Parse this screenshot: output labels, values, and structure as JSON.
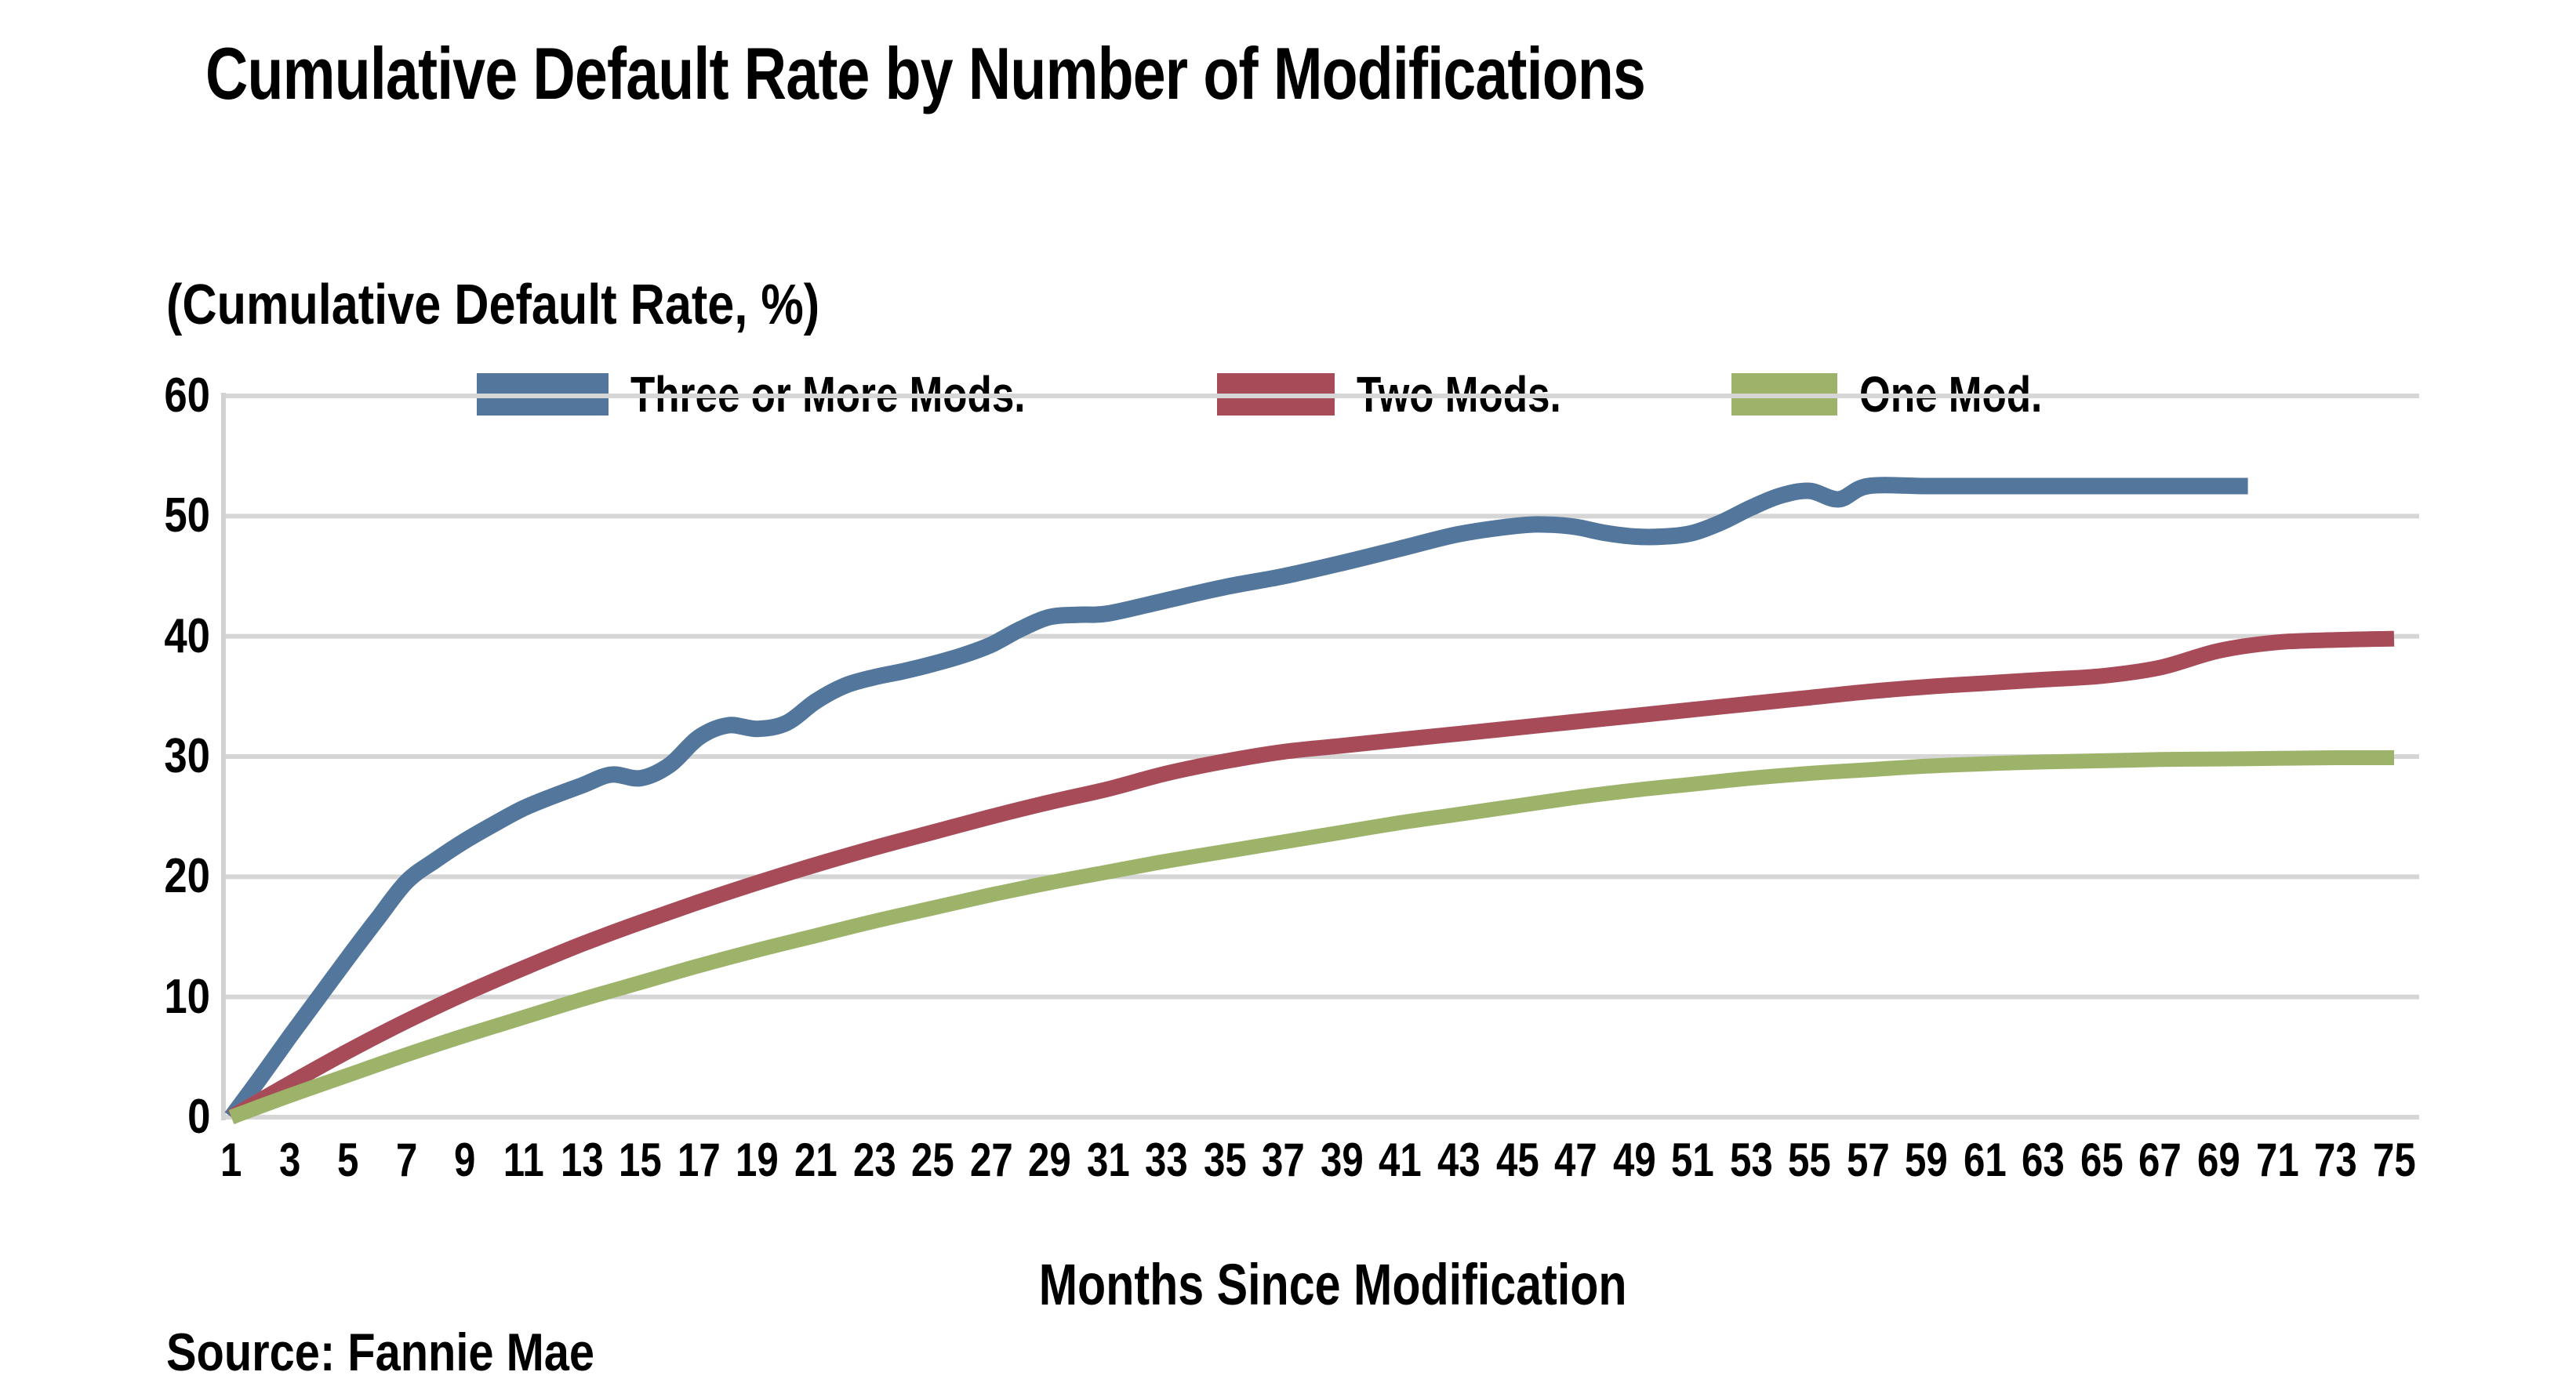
{
  "title": "Cumulative Default Rate by Number of Modifications",
  "legend": {
    "items": [
      {
        "label": "Three or More Mods.",
        "color": "#53779C"
      },
      {
        "label": "Two Mods.",
        "color": "#A84B59"
      },
      {
        "label": "One Mod.",
        "color": "#9DB36A"
      }
    ]
  },
  "y_axis_title": "(Cumulative Default Rate, %)",
  "x_axis_title": "Months Since Modification",
  "source": "Source: Fannie Mae",
  "colors": {
    "gridline": "#D6D6D6",
    "axis_line": "#D2D2D2",
    "text": "#000000",
    "background": "#FFFFFF"
  },
  "chart_data": {
    "type": "line",
    "title": "Cumulative Default Rate by Number of Modifications",
    "xlabel": "Months Since Modification",
    "ylabel": "(Cumulative Default Rate, %)",
    "xlim": [
      1,
      75
    ],
    "ylim": [
      0,
      60
    ],
    "grid": true,
    "legend_position": "top",
    "y_ticks": [
      60,
      50,
      40,
      30,
      20,
      10,
      0
    ],
    "x_ticks": [
      1,
      3,
      5,
      7,
      9,
      11,
      13,
      15,
      17,
      19,
      21,
      23,
      25,
      27,
      29,
      31,
      33,
      35,
      37,
      39,
      41,
      43,
      45,
      47,
      49,
      51,
      53,
      55,
      57,
      59,
      61,
      63,
      65,
      67,
      69,
      71,
      73,
      75
    ],
    "series": [
      {
        "name": "Three or More Mods.",
        "color": "#53779C",
        "stroke_width": 21,
        "x": [
          1,
          2,
          3,
          4,
          5,
          6,
          7,
          8,
          9,
          10,
          11,
          12,
          13,
          14,
          15,
          16,
          17,
          18,
          19,
          20,
          21,
          22,
          23,
          24,
          25,
          26,
          27,
          28,
          29,
          30,
          31,
          33,
          35,
          37,
          39,
          41,
          43,
          45,
          46,
          47,
          48,
          49,
          50,
          51,
          52,
          53,
          54,
          55,
          56,
          57,
          59,
          61,
          63,
          65,
          67,
          69,
          70
        ],
        "y": [
          0,
          3.3,
          6.7,
          10,
          13.3,
          16.5,
          19.6,
          21.4,
          23,
          24.4,
          25.7,
          26.7,
          27.6,
          28.5,
          28.2,
          29.3,
          31.6,
          32.6,
          32.3,
          32.8,
          34.6,
          35.9,
          36.6,
          37.1,
          37.7,
          38.4,
          39.3,
          40.6,
          41.6,
          41.8,
          41.9,
          43,
          44.1,
          45,
          46.1,
          47.3,
          48.5,
          49.2,
          49.3,
          49.1,
          48.6,
          48.3,
          48.3,
          48.6,
          49.5,
          50.7,
          51.7,
          52.1,
          51.4,
          52.5,
          52.5,
          52.5,
          52.5,
          52.5,
          52.5,
          52.5,
          52.5
        ]
      },
      {
        "name": "Two Mods.",
        "color": "#A84B59",
        "stroke_width": 20,
        "x": [
          1,
          3,
          5,
          7,
          9,
          11,
          13,
          15,
          17,
          19,
          21,
          23,
          25,
          27,
          29,
          31,
          33,
          35,
          37,
          39,
          41,
          43,
          45,
          47,
          49,
          51,
          53,
          55,
          57,
          59,
          61,
          63,
          65,
          67,
          69,
          71,
          73,
          75
        ],
        "y": [
          0,
          2.8,
          5.5,
          8,
          10.3,
          12.4,
          14.4,
          16.2,
          17.9,
          19.5,
          21,
          22.4,
          23.7,
          25,
          26.2,
          27.3,
          28.6,
          29.6,
          30.4,
          30.9,
          31.4,
          31.9,
          32.4,
          32.9,
          33.4,
          33.9,
          34.4,
          34.9,
          35.4,
          35.8,
          36.1,
          36.4,
          36.7,
          37.4,
          38.8,
          39.5,
          39.7,
          39.8
        ]
      },
      {
        "name": "One Mod.",
        "color": "#9DB36A",
        "stroke_width": 19,
        "x": [
          1,
          3,
          5,
          7,
          9,
          11,
          13,
          15,
          17,
          19,
          21,
          23,
          25,
          27,
          29,
          31,
          33,
          35,
          37,
          39,
          41,
          43,
          45,
          47,
          49,
          51,
          53,
          55,
          57,
          59,
          61,
          63,
          65,
          67,
          69,
          71,
          73,
          75
        ],
        "y": [
          0,
          1.8,
          3.5,
          5.2,
          6.8,
          8.3,
          9.8,
          11.2,
          12.6,
          13.9,
          15.1,
          16.3,
          17.4,
          18.5,
          19.5,
          20.4,
          21.3,
          22.1,
          22.9,
          23.7,
          24.5,
          25.2,
          25.9,
          26.6,
          27.2,
          27.7,
          28.2,
          28.6,
          28.9,
          29.2,
          29.4,
          29.55,
          29.65,
          29.75,
          29.8,
          29.85,
          29.9,
          29.9
        ]
      }
    ]
  }
}
